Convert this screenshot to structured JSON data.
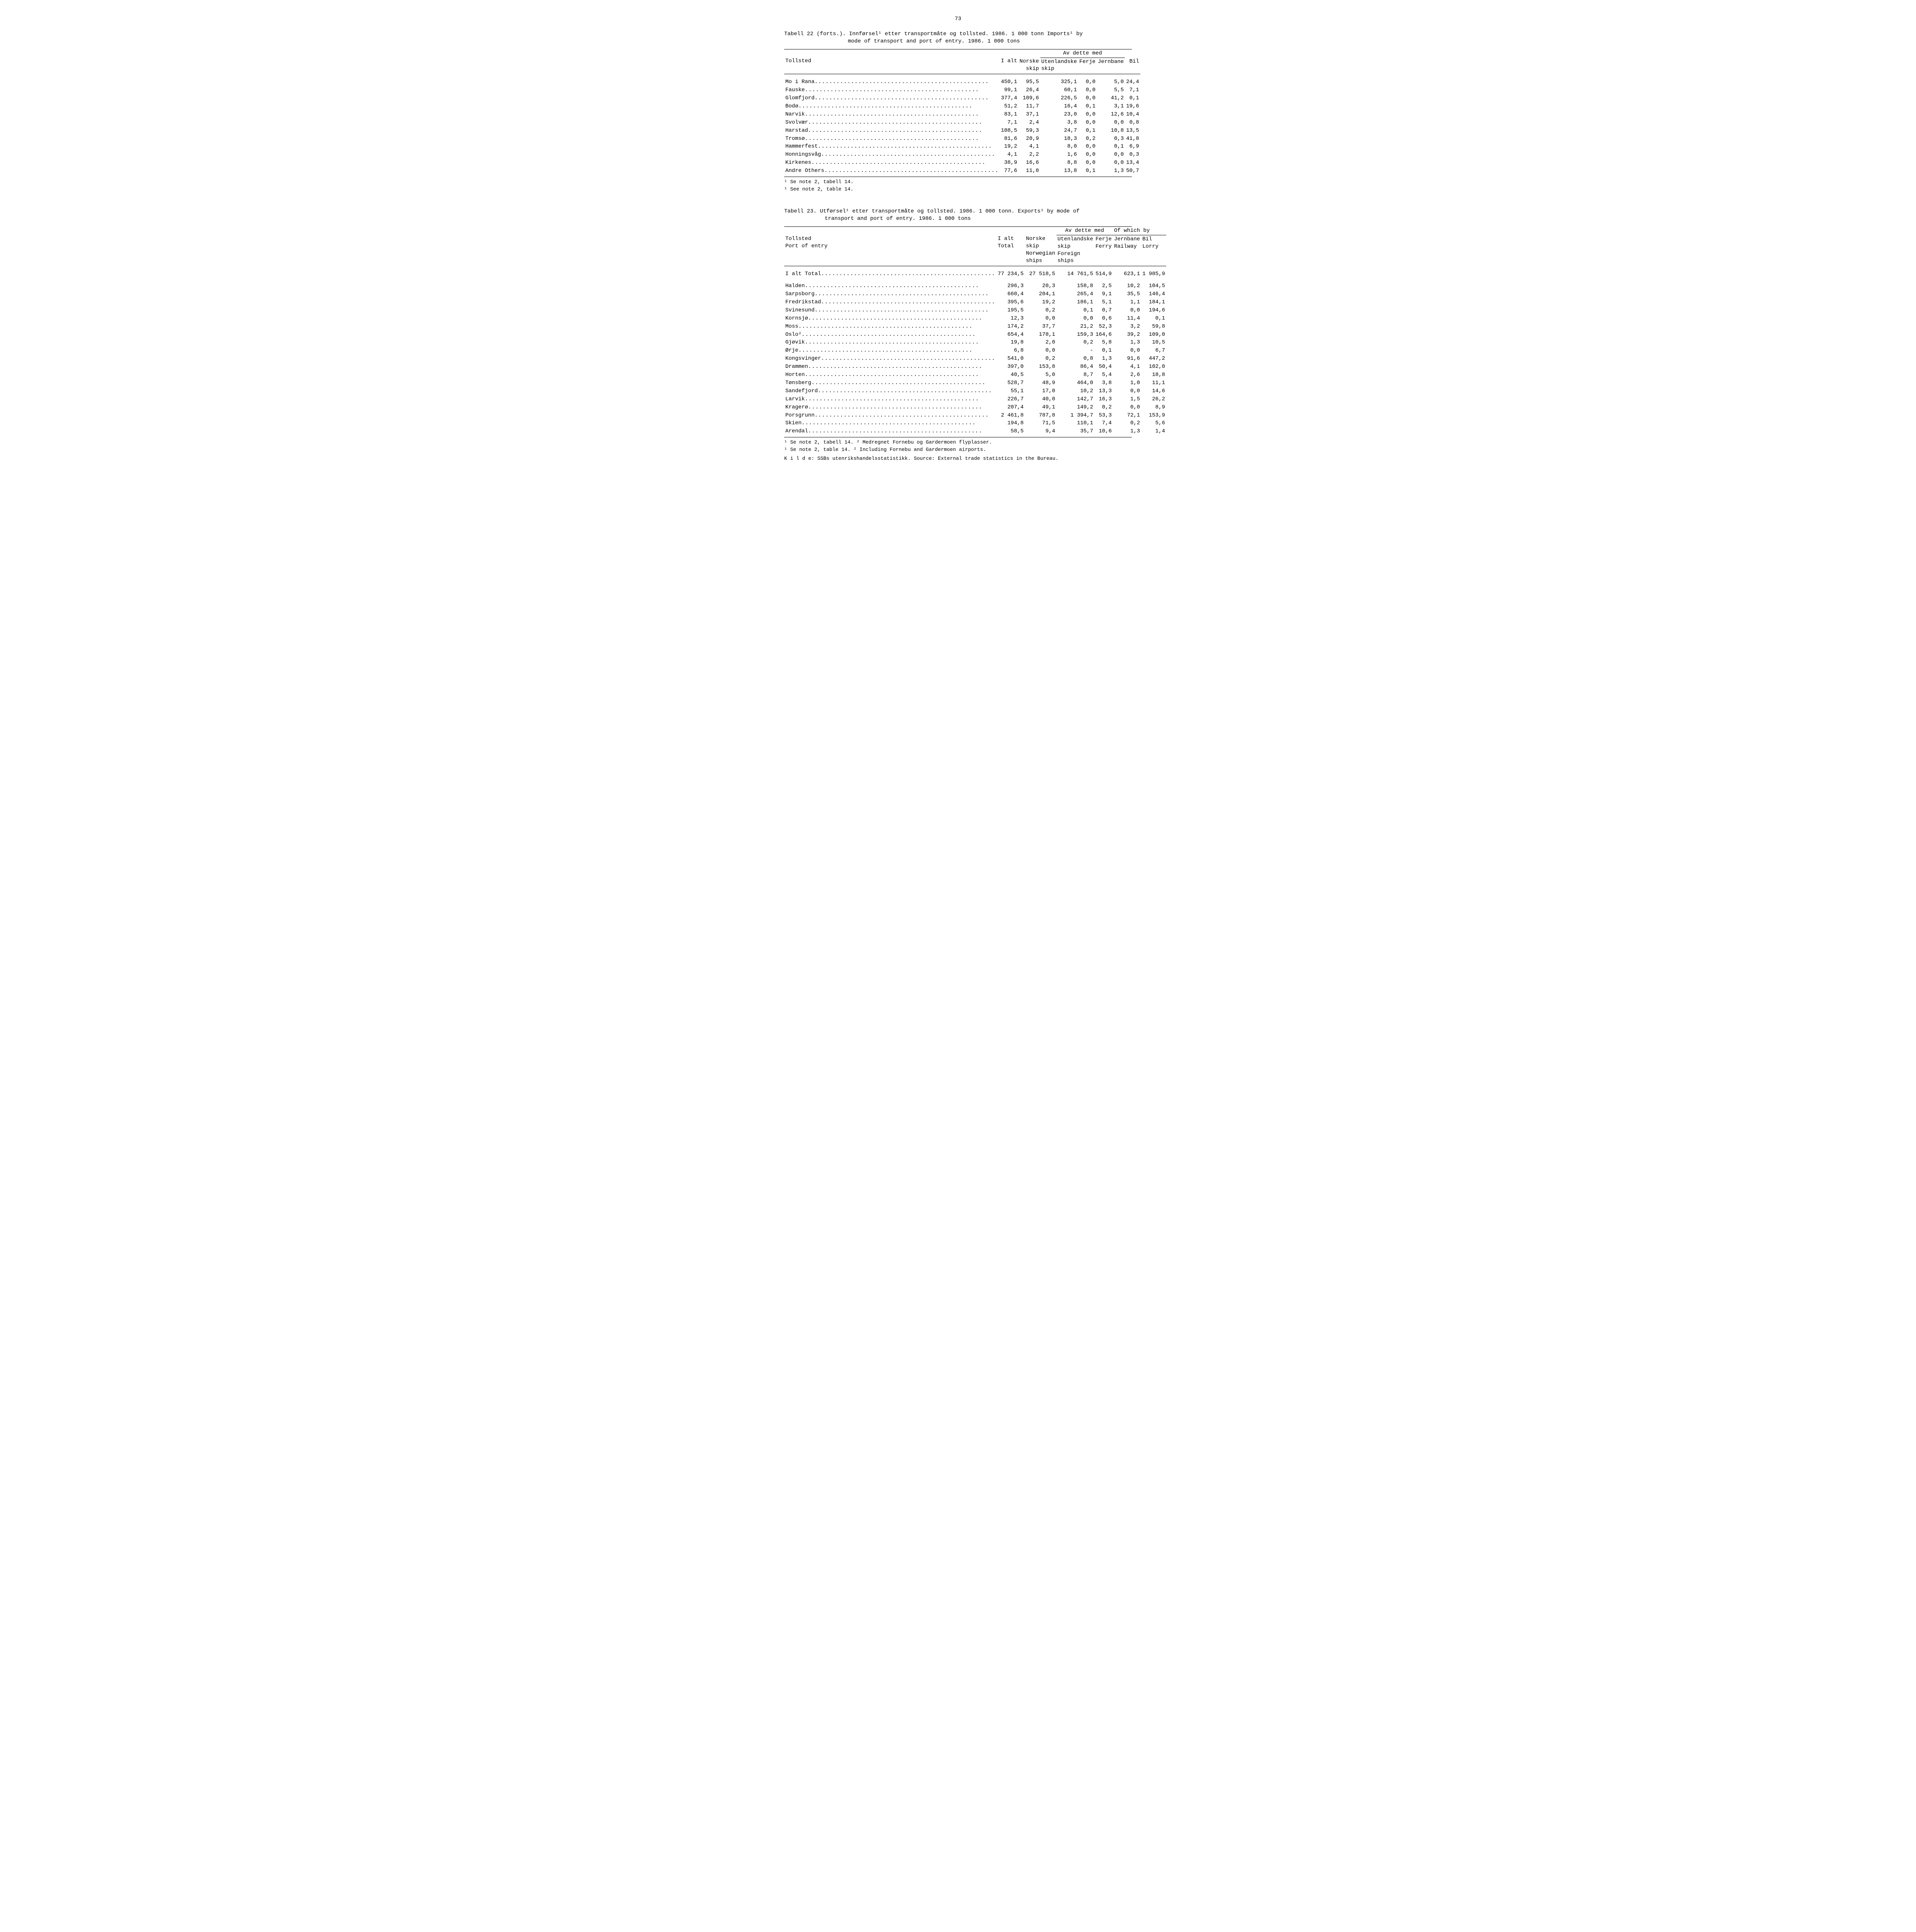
{
  "page_number": "73",
  "table22": {
    "caption_line1": "Tabell 22 (forts.).  Innførsel¹ etter transportmåte og tollsted.  1986.  1 000 tonn    Imports¹ by",
    "caption_line2": "mode of transport and port of entry.  1986.  1 000 tons",
    "headers": {
      "tollsted": "Tollsted",
      "ialt": "I alt",
      "avdette": "Av dette med",
      "norske": "Norske",
      "skip": "skip",
      "utenlandske": "Utenlandske",
      "ferje": "Ferje",
      "jernbane": "Jernbane",
      "bil": "Bil"
    },
    "rows": [
      {
        "name": "Mo i Rana",
        "ialt": "450,1",
        "c1": "95,5",
        "c2": "325,1",
        "c3": "0,0",
        "c4": "5,0",
        "c5": "24,4"
      },
      {
        "name": "Fauske",
        "ialt": "99,1",
        "c1": "26,4",
        "c2": "60,1",
        "c3": "0,0",
        "c4": "5,5",
        "c5": "7,1"
      },
      {
        "name": "Glomfjord",
        "ialt": "377,4",
        "c1": "109,6",
        "c2": "226,5",
        "c3": "0,0",
        "c4": "41,2",
        "c5": "0,1"
      },
      {
        "name": "Bodø",
        "ialt": "51,2",
        "c1": "11,7",
        "c2": "16,4",
        "c3": "0,1",
        "c4": "3,1",
        "c5": "19,6"
      },
      {
        "name": "Narvik",
        "ialt": "83,1",
        "c1": "37,1",
        "c2": "23,0",
        "c3": "0,0",
        "c4": "12,6",
        "c5": "10,4"
      },
      {
        "name": "Svolvær",
        "ialt": "7,1",
        "c1": "2,4",
        "c2": "3,8",
        "c3": "0,0",
        "c4": "0,0",
        "c5": "0,8"
      },
      {
        "name": "Harstad",
        "ialt": "108,5",
        "c1": "59,3",
        "c2": "24,7",
        "c3": "0,1",
        "c4": "10,8",
        "c5": "13,5"
      },
      {
        "name": "Tromsø",
        "ialt": "81,6",
        "c1": "20,9",
        "c2": "18,3",
        "c3": "0,2",
        "c4": "0,3",
        "c5": "41,8"
      },
      {
        "name": "Hammerfest",
        "ialt": "19,2",
        "c1": "4,1",
        "c2": "8,0",
        "c3": "0,0",
        "c4": "0,1",
        "c5": "6,9"
      },
      {
        "name": "Honningsvåg",
        "ialt": "4,1",
        "c1": "2,2",
        "c2": "1,6",
        "c3": "0,0",
        "c4": "0,0",
        "c5": "0,3"
      },
      {
        "name": "Kirkenes",
        "ialt": "38,9",
        "c1": "16,6",
        "c2": "8,8",
        "c3": "0,0",
        "c4": "0,0",
        "c5": "13,4"
      },
      {
        "name": "Andre   Others",
        "ialt": "77,6",
        "c1": "11,0",
        "c2": "13,8",
        "c3": "0,1",
        "c4": "1,3",
        "c5": "50,7"
      }
    ],
    "footnote1": "¹ Se note 2, tabell 14.",
    "footnote2": "¹ See note 2, table 14."
  },
  "table23": {
    "caption_line1": "Tabell 23.  Utførsel¹ etter transportmåte og tollsted.  1986.  1 000 tonn.   Exports¹ by mode of",
    "caption_line2": "transport and port of entry.  1986.  1 000 tons",
    "headers": {
      "tollsted1": "Tollsted",
      "tollsted2": "Port of entry",
      "ialt1": "I alt",
      "ialt2": "Total",
      "avdette": "Av dette med",
      "ofwhich": "Of which by",
      "norske1": "Norske",
      "norske2": "skip",
      "norske3": "Norwegian",
      "norske4": "ships",
      "utl1": "Utenlandske",
      "utl2": "skip",
      "utl3": "Foreign",
      "utl4": "ships",
      "ferje1": "Ferje",
      "ferje2": "Ferry",
      "jern1": "Jernbane",
      "jern2": "Railway",
      "bil1": "Bil",
      "bil2": "Lorry"
    },
    "total_row": {
      "name": "I alt   Total",
      "ialt": "77 234,5",
      "c1": "27 518,5",
      "c2": "14 761,5",
      "c3": "514,9",
      "c4": "623,1",
      "c5": "1 985,9"
    },
    "rows": [
      {
        "name": "Halden",
        "ialt": "296,3",
        "c1": "20,3",
        "c2": "158,8",
        "c3": "2,5",
        "c4": "10,2",
        "c5": "104,5"
      },
      {
        "name": "Sarpsborg",
        "ialt": "660,4",
        "c1": "204,1",
        "c2": "265,4",
        "c3": "9,1",
        "c4": "35,5",
        "c5": "146,4"
      },
      {
        "name": "Fredrikstad",
        "ialt": "395,6",
        "c1": "19,2",
        "c2": "186,1",
        "c3": "5,1",
        "c4": "1,1",
        "c5": "184,1"
      },
      {
        "name": "Svinesund",
        "ialt": "195,5",
        "c1": "0,2",
        "c2": "0,1",
        "c3": "0,7",
        "c4": "0,0",
        "c5": "194,6"
      },
      {
        "name": "Kornsjø",
        "ialt": "12,3",
        "c1": "0,0",
        "c2": "0,0",
        "c3": "0,6",
        "c4": "11,4",
        "c5": "0,1"
      },
      {
        "name": "Moss",
        "ialt": "174,2",
        "c1": "37,7",
        "c2": "21,2",
        "c3": "52,3",
        "c4": "3,2",
        "c5": "59,8"
      },
      {
        "name": "Oslo²",
        "ialt": "654,4",
        "c1": "178,1",
        "c2": "159,3",
        "c3": "164,6",
        "c4": "39,2",
        "c5": "109,0"
      },
      {
        "name": "Gjøvik",
        "ialt": "19,8",
        "c1": "2,0",
        "c2": "0,2",
        "c3": "5,8",
        "c4": "1,3",
        "c5": "10,5"
      },
      {
        "name": "Ørje",
        "ialt": "6,8",
        "c1": "0,0",
        "c2": "-",
        "c3": "0,1",
        "c4": "0,0",
        "c5": "6,7"
      },
      {
        "name": "Kongsvinger",
        "ialt": "541,0",
        "c1": "0,2",
        "c2": "0,8",
        "c3": "1,3",
        "c4": "91,6",
        "c5": "447,2"
      },
      {
        "name": "Drammen",
        "ialt": "397,0",
        "c1": "153,8",
        "c2": "86,4",
        "c3": "50,4",
        "c4": "4,1",
        "c5": "102,0"
      },
      {
        "name": "Horten",
        "ialt": "40,5",
        "c1": "5,0",
        "c2": "8,7",
        "c3": "5,4",
        "c4": "2,6",
        "c5": "18,8"
      },
      {
        "name": "Tønsberg",
        "ialt": "528,7",
        "c1": "48,9",
        "c2": "464,0",
        "c3": "3,8",
        "c4": "1,0",
        "c5": "11,1"
      },
      {
        "name": "Sandefjord",
        "ialt": "55,1",
        "c1": "17,0",
        "c2": "10,2",
        "c3": "13,3",
        "c4": "0,0",
        "c5": "14,6"
      },
      {
        "name": "Larvik",
        "ialt": "226,7",
        "c1": "40,0",
        "c2": "142,7",
        "c3": "16,3",
        "c4": "1,5",
        "c5": "26,2"
      },
      {
        "name": "Kragerø",
        "ialt": "207,4",
        "c1": "49,1",
        "c2": "149,2",
        "c3": "0,2",
        "c4": "0,0",
        "c5": "8,9"
      },
      {
        "name": "Porsgrunn",
        "ialt": "2 461,8",
        "c1": "787,8",
        "c2": "1 394,7",
        "c3": "53,3",
        "c4": "72,1",
        "c5": "153,9"
      },
      {
        "name": "Skien",
        "ialt": "194,8",
        "c1": "71,5",
        "c2": "110,1",
        "c3": "7,4",
        "c4": "0,2",
        "c5": "5,6"
      },
      {
        "name": "Arendal",
        "ialt": "58,5",
        "c1": "9,4",
        "c2": "35,7",
        "c3": "10,6",
        "c4": "1,3",
        "c5": "1,4"
      }
    ],
    "footnote1": "¹ Se note 2, tabell 14.  ² Medregnet Fornebu og Gardermoen flyplasser.",
    "footnote2": "¹ Se note 2, table 14.  ² Including Fornebu and Gardermoen airports.",
    "source": "K i l d e:  SSBs utenrikshandelsstatistikk.    Source:  External trade statistics in the Bureau."
  }
}
